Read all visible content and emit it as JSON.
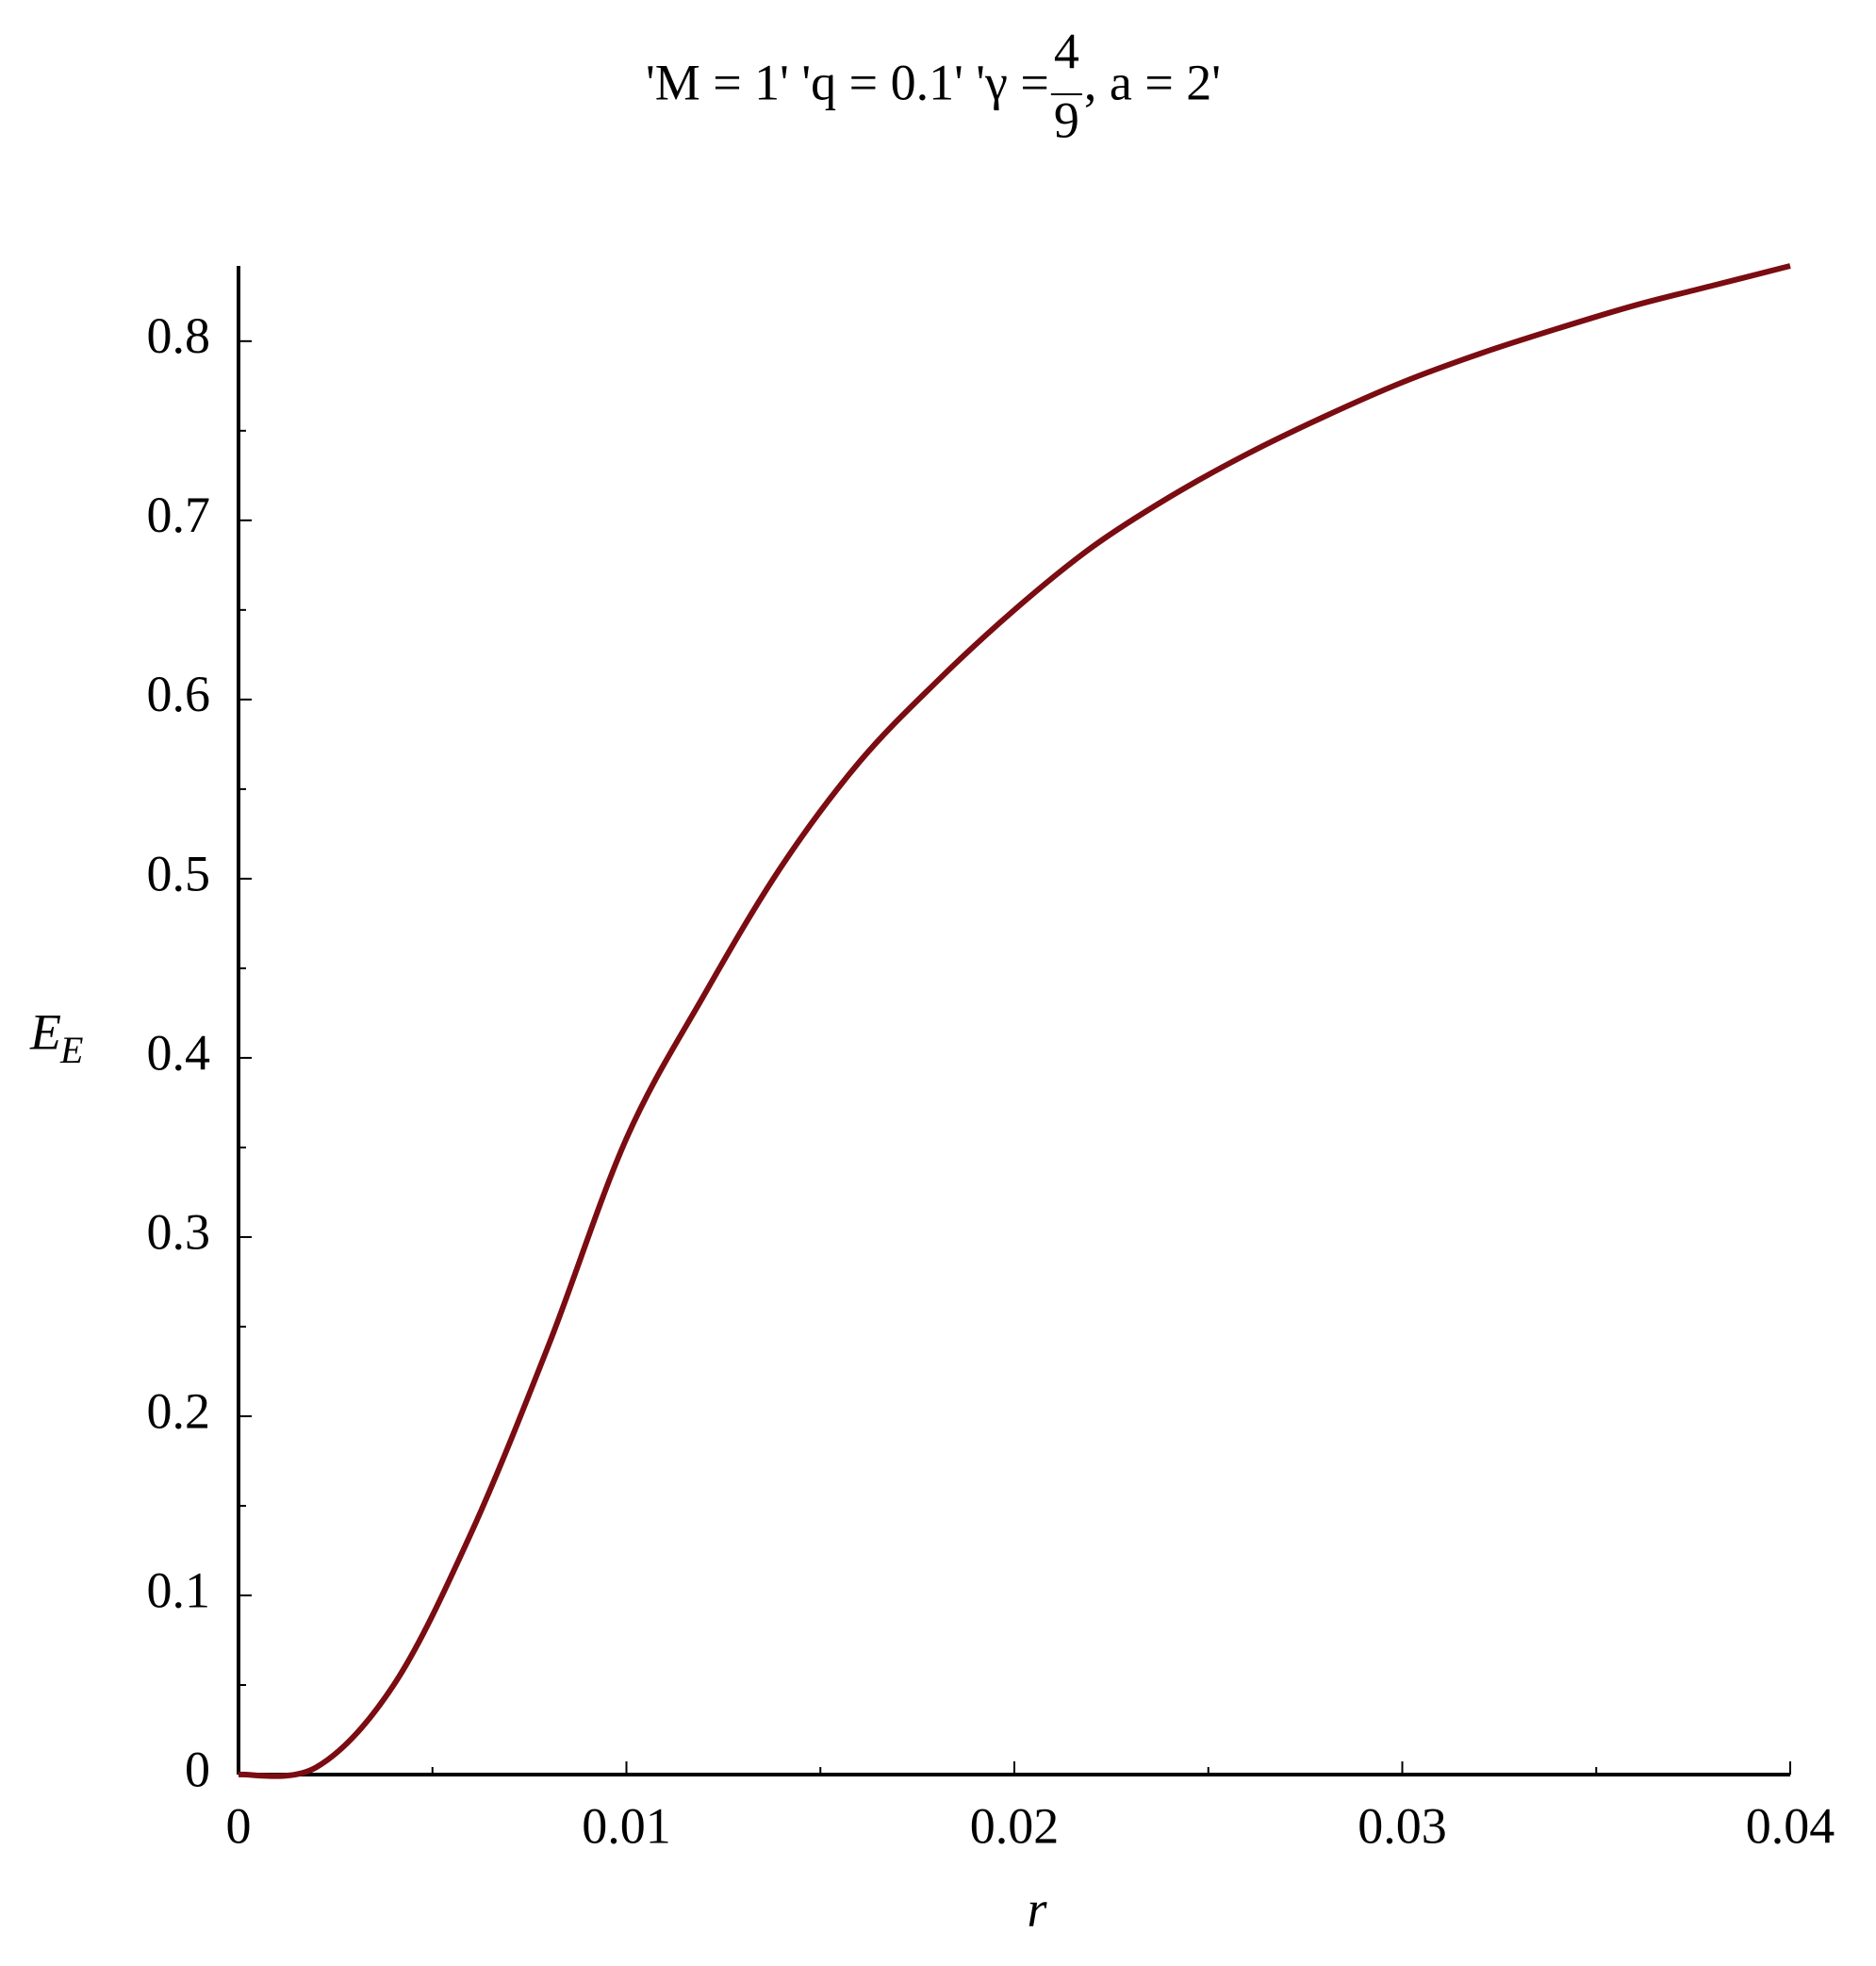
{
  "chart_data": {
    "type": "line",
    "title": "'M = 1' 'q = 0.1' 'γ = ",
    "title_numerator": "4",
    "title_denominator": "9",
    "title_end": ", a = 2'",
    "x_label": "r",
    "y_label": "E",
    "y_label_sub": "E",
    "x": [
      0,
      0.002,
      0.004,
      0.006,
      0.008,
      0.01,
      0.012,
      0.014,
      0.016,
      0.018,
      0.02,
      0.022,
      0.024,
      0.026,
      0.028,
      0.03,
      0.032,
      0.034,
      0.036,
      0.038,
      0.04
    ],
    "series": [
      {
        "name": "E_E",
        "color": "#7a0c12",
        "values": [
          0,
          0.004,
          0.05,
          0.135,
          0.24,
          0.355,
          0.435,
          0.507,
          0.565,
          0.61,
          0.65,
          0.685,
          0.713,
          0.737,
          0.758,
          0.777,
          0.793,
          0.807,
          0.82,
          0.831,
          0.842
        ]
      }
    ],
    "xlim": [
      0,
      0.04
    ],
    "ylim": [
      0,
      0.842
    ],
    "xticks": [
      0,
      0.01,
      0.02,
      0.03,
      0.04
    ],
    "yticks": [
      0,
      0.1,
      0.2,
      0.3,
      0.4,
      0.5,
      0.6,
      0.7,
      0.8
    ],
    "xminorticks": [
      0.005,
      0.015,
      0.025,
      0.035
    ],
    "yminorticks": [
      0.05,
      0.15,
      0.25,
      0.35,
      0.45,
      0.55,
      0.65,
      0.75
    ]
  }
}
